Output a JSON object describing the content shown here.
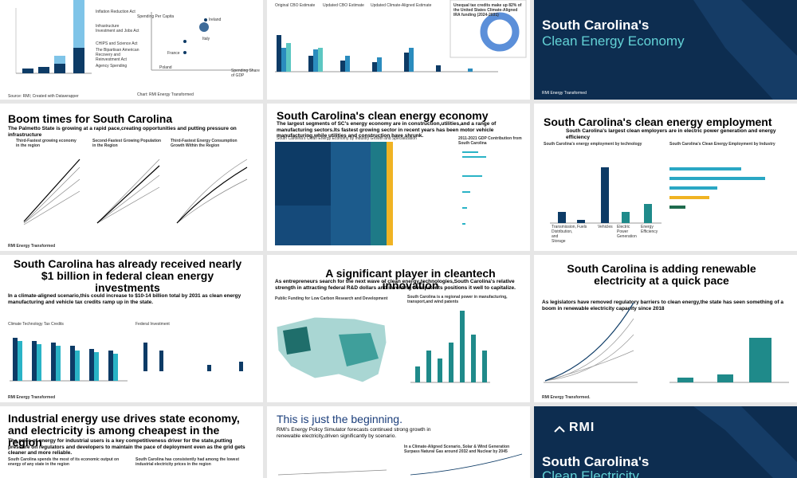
{
  "slides": [
    {
      "legend": [
        "Inflation Reduction Act",
        "Infrastructure Investment and Jobs Act",
        "CHIPS and Science Act",
        "The Bipartisan American Recovery and Reinvestment Act",
        "Agency Spending"
      ],
      "source": "Source: RMI; Created with Datawrapper"
    },
    {
      "axis_y": "Spending Per Capita",
      "axis_x": "Spending Share of GDP",
      "points": [
        "Ireland",
        "Italy",
        "France",
        "Poland"
      ],
      "source": "Chart: RMI Energy Transformed"
    },
    {
      "legend": [
        "Original CBO Estimate",
        "Updated CBO Estimate",
        "Updated Climate-Aligned Estimate"
      ],
      "callout": "Unequal tax credits make up 82% of the United States Climate-Aligned IRA funding (2024-2031)"
    },
    {
      "title": "South Carolina's",
      "title2": "Clean Energy Economy",
      "footer": "RMI Energy Transformed"
    },
    {
      "title": "Boom times for South Carolina",
      "subtitle": "The Palmetto State is growing at a rapid pace,creating opportunities and putting pressure on infrastructure",
      "panels": [
        "Third-Fastest growing economy in the region",
        "Second-Fastest Growing Population in the Region",
        "Third-Fastest Energy Consumption Growth Within the Region"
      ],
      "footer": "RMI Energy Transformed"
    },
    {
      "title": "South Carolina's clean energy economy",
      "subtitle": "The largest segments of SC's energy economy are in construction,utilities,and a range of manufacturing sectors.Its fastest growing sector in recent years has been motor vehicle manufacturing,while utilities and construction have shrunk.",
      "panels": [
        "South Carolina's Clean Energy Economy by Industry Growth and Specialization",
        "2011-2021 GDP Contribution from South Carolina"
      ]
    },
    {
      "title": "South Carolina's clean energy employment",
      "subtitle": "South Carolina's largest clean employers are in electric power generation and energy efficiency",
      "panels": [
        "South Carolina's energy employment by technology",
        "South Carolina's Clean Energy Employment by Industry"
      ],
      "categories": [
        "Transmission, Distribution, and Storage",
        "Fuels",
        "Vehicles",
        "Electric Power Generation",
        "Energy Efficiency"
      ]
    },
    {
      "title": "South Carolina has already received nearly $1 billion in federal clean energy investments",
      "subtitle": "In a climate-aligned scenario,this could increase to $10-14 billion total by 2031 as clean energy manufacturing and vehicle tax credits ramp up in the state.",
      "panels": [
        "Climate Technology Tax Credits",
        "Federal Investment"
      ],
      "footer": "RMI Energy Transformed"
    },
    {
      "title": "A significant player in cleantech innovation",
      "subtitle": "As entrepreneurs search for the next wave of clean energy technologies,South Carolina's relative strength in attracting federal R&D dollars and inventing new patents positions it well to capitalize.",
      "panels": [
        "Public Funding for Low Carbon Research and Development",
        "South Carolina is a regional power in manufacturing, transport,and wind patents"
      ]
    },
    {
      "title": "South Carolina is adding renewable electricity at a quick pace",
      "subtitle": "As legislators have removed regulatory barriers to clean energy,the state has seen something of a boom in renewable electricity capacity since 2018",
      "footer": "RMI Energy Transformed."
    },
    {
      "title": "Industrial energy use drives state economy, and electricity is among cheapest in the region",
      "subtitle": "The price of energy for industrial users is a key competitiveness driver for the state,putting pressure on regulators and developers to maintain the pace of deployment even as the grid gets cleaner and more reliable.",
      "panels": [
        "South Carolina spends the most of its economic output on energy of any state in the region",
        "South Carolina has consistently had among the lowest industrial electricity prices in the region"
      ]
    },
    {
      "title": "This is just the beginning.",
      "subtitle": "RMI's Energy Policy Simulator forecasts continued strong growth in renewable electricity,driven significantly by scenario.",
      "panels": [
        "In a Climate-Aligned Scenario, Solar & Wind Generation Surpass Natural Gas around 2032 and Nuclear by 2045"
      ]
    },
    {
      "logo": "RMI",
      "title": "South Carolina's",
      "title2": "Clean Electricity"
    }
  ]
}
